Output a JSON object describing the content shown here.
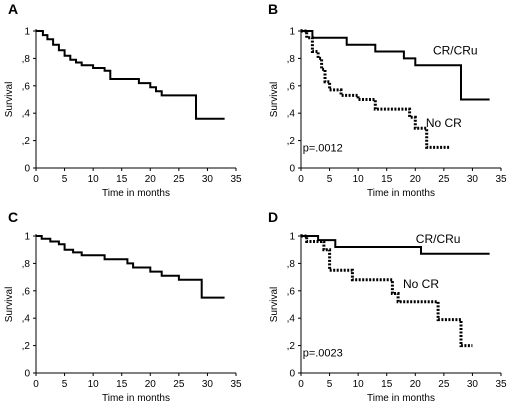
{
  "chart_data": [
    {
      "type": "line",
      "subtype": "kaplan-meier-step",
      "panel": "A",
      "xlabel": "Time in months",
      "ylabel": "Survival",
      "xlim": [
        0,
        35
      ],
      "ylim": [
        0,
        1
      ],
      "x_ticks": [
        "0",
        "5",
        "10",
        "15",
        "20",
        "25",
        "30",
        "35"
      ],
      "y_ticks": [
        "0",
        ",2",
        ",4",
        ",6",
        ",8",
        "1"
      ],
      "series": [
        {
          "style": "solid",
          "points": [
            [
              0,
              1.0
            ],
            [
              1.2,
              0.97
            ],
            [
              2,
              0.94
            ],
            [
              3,
              0.9
            ],
            [
              4,
              0.86
            ],
            [
              5,
              0.82
            ],
            [
              6,
              0.79
            ],
            [
              7,
              0.77
            ],
            [
              8,
              0.75
            ],
            [
              10,
              0.73
            ],
            [
              12,
              0.71
            ],
            [
              13,
              0.65
            ],
            [
              18,
              0.62
            ],
            [
              20,
              0.59
            ],
            [
              21,
              0.56
            ],
            [
              22,
              0.53
            ],
            [
              28,
              0.36
            ],
            [
              33,
              0.36
            ]
          ]
        }
      ],
      "annotations": []
    },
    {
      "type": "line",
      "subtype": "kaplan-meier-step",
      "panel": "B",
      "xlabel": "Time in months",
      "ylabel": "Survival",
      "xlim": [
        0,
        35
      ],
      "ylim": [
        0,
        1
      ],
      "x_ticks": [
        "0",
        "5",
        "10",
        "15",
        "20",
        "25",
        "30",
        "35"
      ],
      "y_ticks": [
        "0",
        ",2",
        ",4",
        ",6",
        ",8",
        "1"
      ],
      "series": [
        {
          "name": "CR/CRu",
          "style": "solid",
          "points": [
            [
              0,
              1.0
            ],
            [
              2,
              0.95
            ],
            [
              8,
              0.9
            ],
            [
              13,
              0.85
            ],
            [
              18,
              0.8
            ],
            [
              20,
              0.75
            ],
            [
              28,
              0.5
            ],
            [
              33,
              0.5
            ]
          ]
        },
        {
          "name": "No CR",
          "style": "dotted",
          "points": [
            [
              0,
              1.0
            ],
            [
              1,
              0.95
            ],
            [
              2,
              0.85
            ],
            [
              3,
              0.8
            ],
            [
              3.6,
              0.72
            ],
            [
              4.2,
              0.63
            ],
            [
              5,
              0.57
            ],
            [
              7,
              0.53
            ],
            [
              10,
              0.5
            ],
            [
              13,
              0.43
            ],
            [
              19,
              0.37
            ],
            [
              20,
              0.29
            ],
            [
              22,
              0.15
            ],
            [
              26,
              0.15
            ]
          ]
        }
      ],
      "annotations": [
        {
          "text": "p=.0012"
        }
      ]
    },
    {
      "type": "line",
      "subtype": "kaplan-meier-step",
      "panel": "C",
      "xlabel": "Time in months",
      "ylabel": "Survival",
      "xlim": [
        0,
        35
      ],
      "ylim": [
        0,
        1
      ],
      "x_ticks": [
        "0",
        "5",
        "10",
        "15",
        "20",
        "25",
        "30",
        "35"
      ],
      "y_ticks": [
        "0",
        ",2",
        ",4",
        ",6",
        ",8",
        "1"
      ],
      "series": [
        {
          "style": "solid",
          "points": [
            [
              0,
              1.0
            ],
            [
              1,
              0.98
            ],
            [
              2.5,
              0.96
            ],
            [
              4,
              0.94
            ],
            [
              5,
              0.9
            ],
            [
              6.5,
              0.88
            ],
            [
              8,
              0.86
            ],
            [
              12,
              0.83
            ],
            [
              16,
              0.8
            ],
            [
              17,
              0.77
            ],
            [
              20,
              0.74
            ],
            [
              22,
              0.71
            ],
            [
              25,
              0.68
            ],
            [
              29,
              0.55
            ],
            [
              33,
              0.55
            ]
          ]
        }
      ],
      "annotations": []
    },
    {
      "type": "line",
      "subtype": "kaplan-meier-step",
      "panel": "D",
      "xlabel": "Time in months",
      "ylabel": "Survival",
      "xlim": [
        0,
        35
      ],
      "ylim": [
        0,
        1
      ],
      "x_ticks": [
        "0",
        "5",
        "10",
        "15",
        "20",
        "25",
        "30",
        "35"
      ],
      "y_ticks": [
        "0",
        ",2",
        ",4",
        ",6",
        ",8",
        "1"
      ],
      "series": [
        {
          "name": "CR/CRu",
          "style": "solid",
          "points": [
            [
              0,
              1.0
            ],
            [
              3,
              0.97
            ],
            [
              6,
              0.92
            ],
            [
              21,
              0.87
            ],
            [
              33,
              0.87
            ]
          ]
        },
        {
          "name": "No CR",
          "style": "dotted",
          "points": [
            [
              0,
              1.0
            ],
            [
              1,
              0.96
            ],
            [
              4,
              0.9
            ],
            [
              5,
              0.75
            ],
            [
              9,
              0.68
            ],
            [
              16,
              0.58
            ],
            [
              17,
              0.52
            ],
            [
              24,
              0.39
            ],
            [
              28,
              0.2
            ],
            [
              30,
              0.2
            ]
          ]
        }
      ],
      "annotations": [
        {
          "text": "p=.0023"
        }
      ]
    }
  ]
}
